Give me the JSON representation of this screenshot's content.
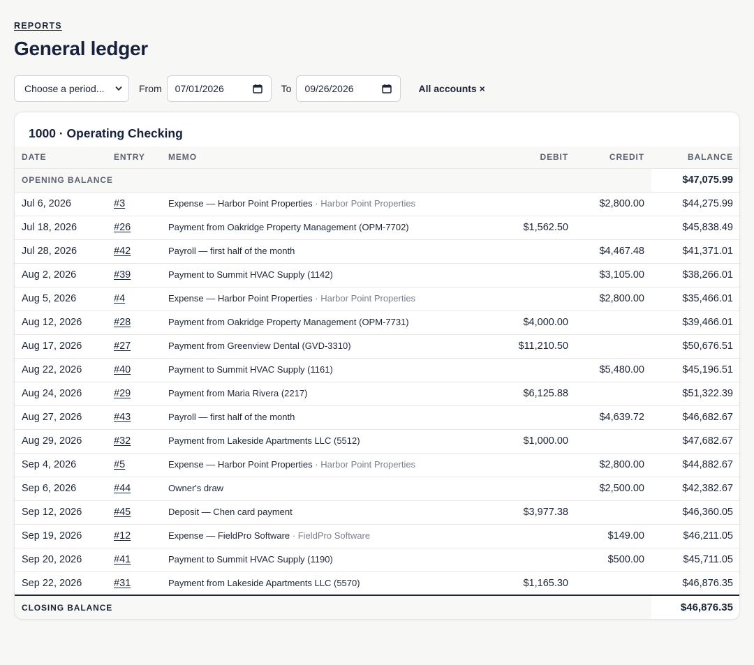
{
  "breadcrumb": "REPORTS",
  "page_title": "General ledger",
  "filters": {
    "period_select": "Choose a period...",
    "from_label": "From",
    "from_value": "07/01/2026",
    "to_label": "To",
    "to_value": "09/26/2026",
    "accounts_chip": "All accounts ×"
  },
  "account": {
    "title": "1000 · Operating Checking",
    "columns": {
      "date": "DATE",
      "entry": "ENTRY",
      "memo": "MEMO",
      "debit": "DEBIT",
      "credit": "CREDIT",
      "balance": "BALANCE"
    },
    "opening": {
      "label": "OPENING BALANCE",
      "balance": "$47,075.99"
    },
    "rows": [
      {
        "date": "Jul 6, 2026",
        "entry": "#3",
        "memo": "Expense — Harbor Point Properties",
        "payee": "· Harbor Point Properties",
        "debit": "",
        "credit": "$2,800.00",
        "balance": "$44,275.99"
      },
      {
        "date": "Jul 18, 2026",
        "entry": "#26",
        "memo": "Payment from Oakridge Property Management (OPM-7702)",
        "payee": "",
        "debit": "$1,562.50",
        "credit": "",
        "balance": "$45,838.49"
      },
      {
        "date": "Jul 28, 2026",
        "entry": "#42",
        "memo": "Payroll — first half of the month",
        "payee": "",
        "debit": "",
        "credit": "$4,467.48",
        "balance": "$41,371.01"
      },
      {
        "date": "Aug 2, 2026",
        "entry": "#39",
        "memo": "Payment to Summit HVAC Supply (1142)",
        "payee": "",
        "debit": "",
        "credit": "$3,105.00",
        "balance": "$38,266.01"
      },
      {
        "date": "Aug 5, 2026",
        "entry": "#4",
        "memo": "Expense — Harbor Point Properties",
        "payee": "· Harbor Point Properties",
        "debit": "",
        "credit": "$2,800.00",
        "balance": "$35,466.01"
      },
      {
        "date": "Aug 12, 2026",
        "entry": "#28",
        "memo": "Payment from Oakridge Property Management (OPM-7731)",
        "payee": "",
        "debit": "$4,000.00",
        "credit": "",
        "balance": "$39,466.01"
      },
      {
        "date": "Aug 17, 2026",
        "entry": "#27",
        "memo": "Payment from Greenview Dental (GVD-3310)",
        "payee": "",
        "debit": "$11,210.50",
        "credit": "",
        "balance": "$50,676.51"
      },
      {
        "date": "Aug 22, 2026",
        "entry": "#40",
        "memo": "Payment to Summit HVAC Supply (1161)",
        "payee": "",
        "debit": "",
        "credit": "$5,480.00",
        "balance": "$45,196.51"
      },
      {
        "date": "Aug 24, 2026",
        "entry": "#29",
        "memo": "Payment from Maria Rivera (2217)",
        "payee": "",
        "debit": "$6,125.88",
        "credit": "",
        "balance": "$51,322.39"
      },
      {
        "date": "Aug 27, 2026",
        "entry": "#43",
        "memo": "Payroll — first half of the month",
        "payee": "",
        "debit": "",
        "credit": "$4,639.72",
        "balance": "$46,682.67"
      },
      {
        "date": "Aug 29, 2026",
        "entry": "#32",
        "memo": "Payment from Lakeside Apartments LLC (5512)",
        "payee": "",
        "debit": "$1,000.00",
        "credit": "",
        "balance": "$47,682.67"
      },
      {
        "date": "Sep 4, 2026",
        "entry": "#5",
        "memo": "Expense — Harbor Point Properties",
        "payee": "· Harbor Point Properties",
        "debit": "",
        "credit": "$2,800.00",
        "balance": "$44,882.67"
      },
      {
        "date": "Sep 6, 2026",
        "entry": "#44",
        "memo": "Owner's draw",
        "payee": "",
        "debit": "",
        "credit": "$2,500.00",
        "balance": "$42,382.67"
      },
      {
        "date": "Sep 12, 2026",
        "entry": "#45",
        "memo": "Deposit — Chen card payment",
        "payee": "",
        "debit": "$3,977.38",
        "credit": "",
        "balance": "$46,360.05"
      },
      {
        "date": "Sep 19, 2026",
        "entry": "#12",
        "memo": "Expense — FieldPro Software",
        "payee": "· FieldPro Software",
        "debit": "",
        "credit": "$149.00",
        "balance": "$46,211.05"
      },
      {
        "date": "Sep 20, 2026",
        "entry": "#41",
        "memo": "Payment to Summit HVAC Supply (1190)",
        "payee": "",
        "debit": "",
        "credit": "$500.00",
        "balance": "$45,711.05"
      },
      {
        "date": "Sep 22, 2026",
        "entry": "#31",
        "memo": "Payment from Lakeside Apartments LLC (5570)",
        "payee": "",
        "debit": "$1,165.30",
        "credit": "",
        "balance": "$46,876.35"
      }
    ],
    "closing": {
      "label": "CLOSING BALANCE",
      "balance": "$46,876.35"
    }
  },
  "icons": {
    "select_chevron": "chevron-down-icon",
    "date_picker": "calendar-icon"
  }
}
